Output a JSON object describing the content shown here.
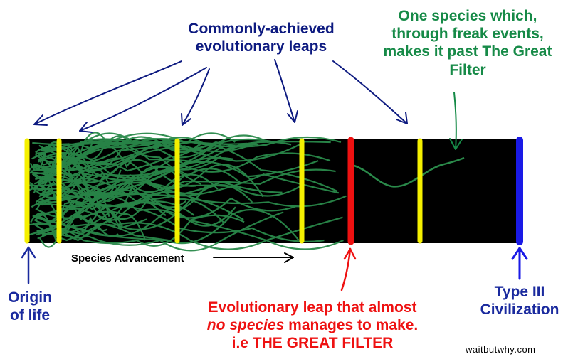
{
  "labels": {
    "common_leaps": "Commonly-achieved evolutionary leaps",
    "one_species": "One species which, through freak events, makes it past The Great Filter",
    "origin": "Origin of life",
    "great_filter_line1": "Evolutionary leap that almost",
    "great_filter_line2_em": "no species",
    "great_filter_line2_rest": " manages to make.",
    "great_filter_line3": "i.e THE GREAT FILTER",
    "type3": "Type III Civilization",
    "advancement": "Species Advancement",
    "credit": "waitbutwhy.com"
  },
  "colors": {
    "bar": "#000000",
    "leap_lines": "#f5f000",
    "great_filter": "#ee1111",
    "type3": "#1a1ae6",
    "species_paths": "#2a8a4a",
    "navy_text": "#0d1a80",
    "green_text": "#168a47"
  }
}
